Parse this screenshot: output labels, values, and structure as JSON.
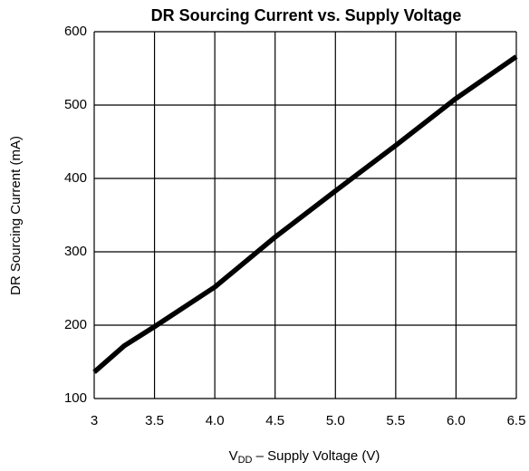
{
  "chart_data": {
    "type": "line",
    "title": "DR Sourcing Current vs. Supply Voltage",
    "y_label": "DR Sourcing Current (mA)",
    "x_label": {
      "main": "V",
      "sub": "DD",
      "rest": " – Supply Voltage (V)"
    },
    "x": [
      3,
      3.25,
      3.5,
      4.0,
      4.5,
      5.0,
      5.5,
      6.0,
      6.5
    ],
    "series": [
      {
        "name": "DR Sourcing Current",
        "color": "#000000",
        "values": [
          136,
          172,
          198,
          252,
          320,
          383,
          445,
          509,
          566
        ]
      }
    ],
    "xlim": [
      3,
      6.5
    ],
    "xticks": [
      3,
      3.5,
      {
        "value": 4,
        "label": "4.0"
      },
      4.5,
      {
        "value": 5,
        "label": "5.0"
      },
      5.5,
      {
        "value": 6,
        "label": "6.0"
      },
      6.5
    ],
    "ylim": [
      100,
      600
    ],
    "yticks": [
      100,
      200,
      300,
      400,
      500,
      600
    ],
    "grid": true
  }
}
